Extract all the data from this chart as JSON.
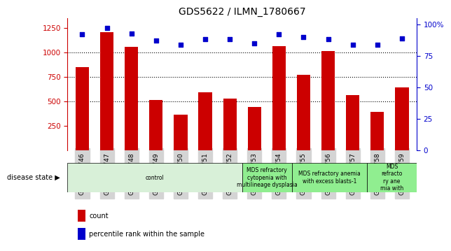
{
  "title": "GDS5622 / ILMN_1780667",
  "samples": [
    "GSM1515746",
    "GSM1515747",
    "GSM1515748",
    "GSM1515749",
    "GSM1515750",
    "GSM1515751",
    "GSM1515752",
    "GSM1515753",
    "GSM1515754",
    "GSM1515755",
    "GSM1515756",
    "GSM1515757",
    "GSM1515758",
    "GSM1515759"
  ],
  "counts": [
    850,
    1210,
    1055,
    510,
    360,
    590,
    530,
    440,
    1060,
    770,
    1010,
    560,
    390,
    640
  ],
  "percentile_ranks": [
    92,
    97,
    93,
    87,
    84,
    88,
    88,
    85,
    92,
    90,
    88,
    84,
    84,
    89
  ],
  "bar_color": "#cc0000",
  "dot_color": "#0000cc",
  "ylim_left": [
    0,
    1350
  ],
  "ylim_right": [
    0,
    105
  ],
  "yticks_left": [
    250,
    500,
    750,
    1000,
    1250
  ],
  "yticks_right": [
    0,
    25,
    50,
    75,
    100
  ],
  "grid_values": [
    500,
    750,
    1000
  ],
  "disease_groups": [
    {
      "label": "control",
      "start": 0,
      "end": 7,
      "color": "#d8f0d8"
    },
    {
      "label": "MDS refractory\ncytopenia with\nmultilineage dysplasia",
      "start": 7,
      "end": 9,
      "color": "#90ee90"
    },
    {
      "label": "MDS refractory anemia\nwith excess blasts-1",
      "start": 9,
      "end": 12,
      "color": "#90ee90"
    },
    {
      "label": "MDS\nrefracto\nry ane\nmia with",
      "start": 12,
      "end": 14,
      "color": "#90ee90"
    }
  ],
  "disease_state_label": "disease state",
  "legend_count_label": "count",
  "legend_percentile_label": "percentile rank within the sample",
  "tick_bg_color": "#d4d4d4"
}
